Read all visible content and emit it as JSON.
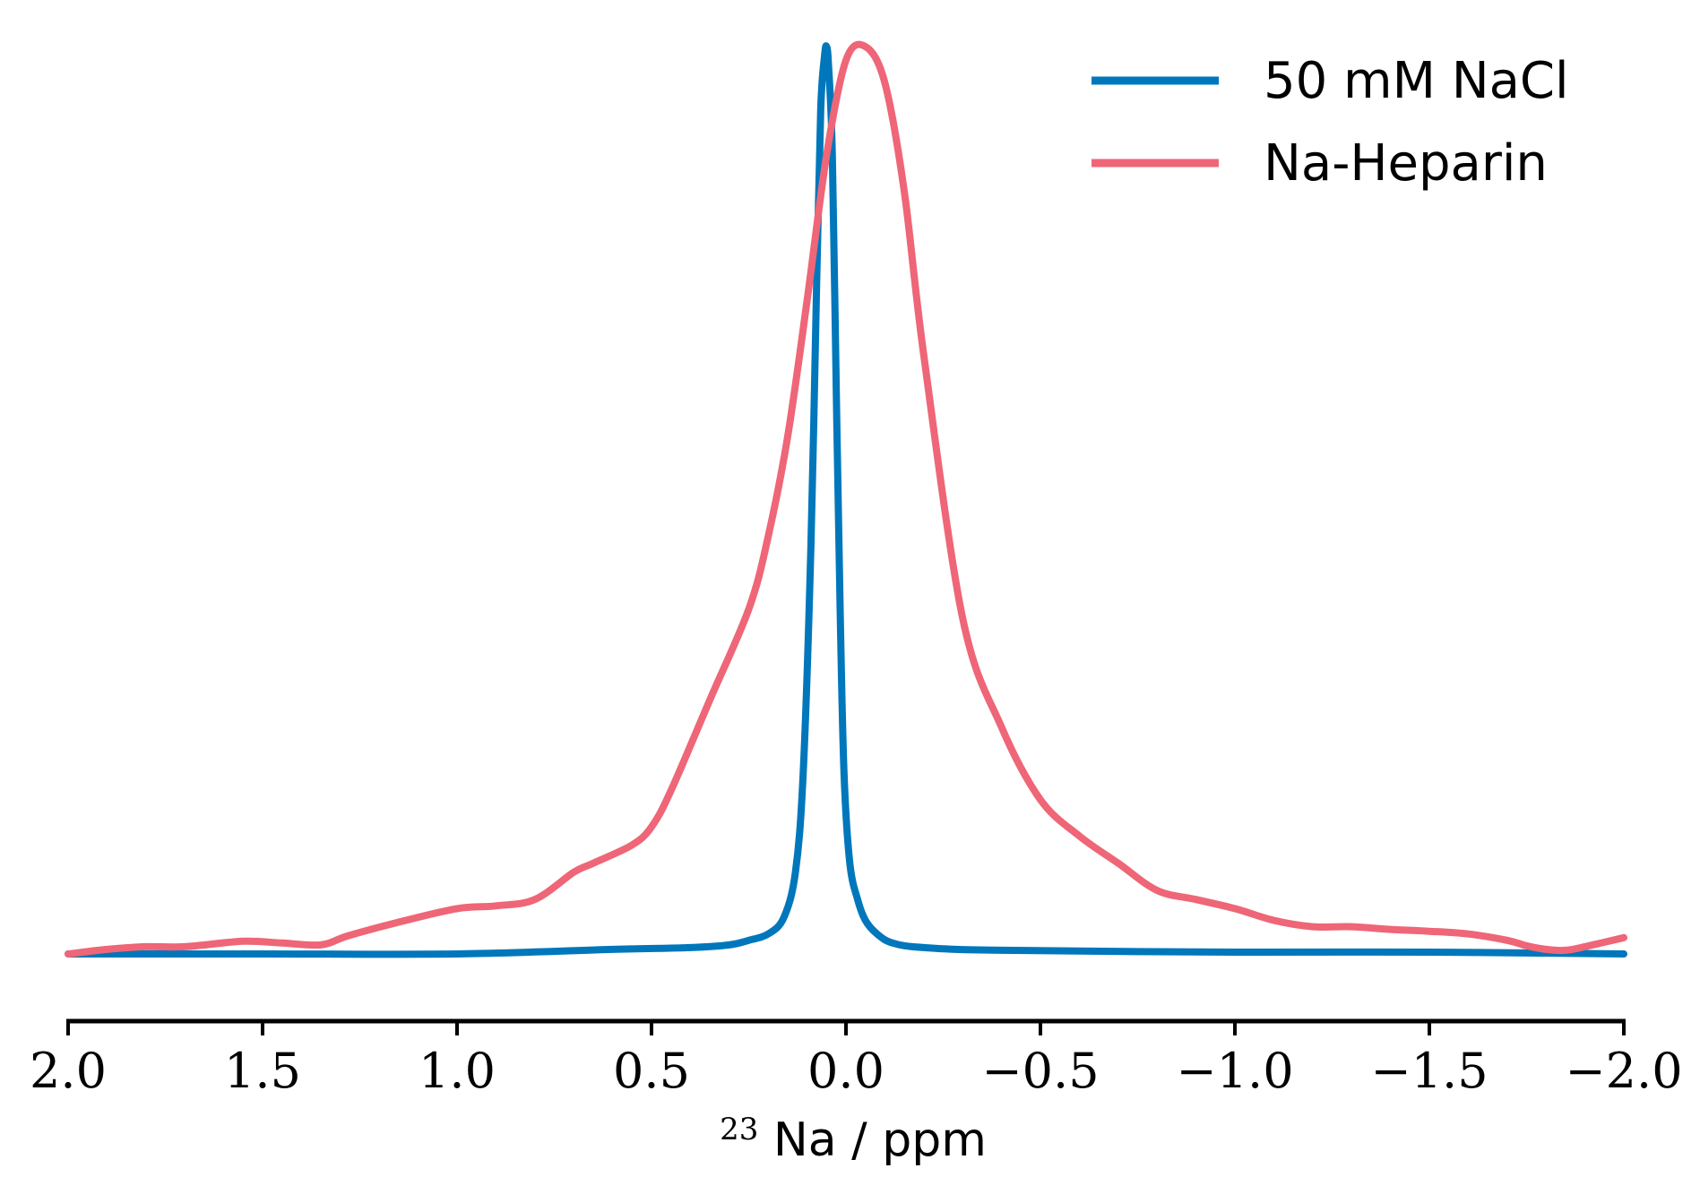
{
  "chart_data": {
    "type": "line",
    "title": "",
    "xlabel": {
      "superscript": "23",
      "text": "Na / ppm"
    },
    "ylabel": "",
    "xlim": [
      2.0,
      -2.0
    ],
    "ylim": [
      0,
      1.0
    ],
    "x_inverted": true,
    "yaxis_visible": false,
    "grid": false,
    "legend_position": "top-right",
    "xticks": [
      {
        "value": 2.0,
        "label": "2.0"
      },
      {
        "value": 1.5,
        "label": "1.5"
      },
      {
        "value": 1.0,
        "label": "1.0"
      },
      {
        "value": 0.5,
        "label": "0.5"
      },
      {
        "value": 0.0,
        "label": "0.0"
      },
      {
        "value": -0.5,
        "label": "−0.5"
      },
      {
        "value": -1.0,
        "label": "−1.0"
      },
      {
        "value": -1.5,
        "label": "−1.5"
      },
      {
        "value": -2.0,
        "label": "−2.0"
      }
    ],
    "series": [
      {
        "name": "50 mM NaCl",
        "color": "#0077bb",
        "x": [
          2.0,
          1.5,
          1.0,
          0.6,
          0.4,
          0.3,
          0.25,
          0.2,
          0.16,
          0.13,
          0.11,
          0.09,
          0.075,
          0.065,
          0.055,
          0.05,
          0.045,
          0.035,
          0.025,
          0.015,
          0.005,
          -0.01,
          -0.03,
          -0.05,
          -0.08,
          -0.12,
          -0.2,
          -0.4,
          -1.0,
          -1.5,
          -2.0
        ],
        "y": [
          0.0,
          0.0,
          0.0,
          0.005,
          0.007,
          0.01,
          0.015,
          0.022,
          0.04,
          0.09,
          0.2,
          0.45,
          0.75,
          0.93,
          0.99,
          1.0,
          0.98,
          0.88,
          0.62,
          0.38,
          0.2,
          0.1,
          0.06,
          0.037,
          0.022,
          0.012,
          0.007,
          0.004,
          0.002,
          0.002,
          0.0
        ]
      },
      {
        "name": "Na-Heparin",
        "color": "#ee6677",
        "x": [
          2.0,
          1.9,
          1.8,
          1.7,
          1.55,
          1.45,
          1.35,
          1.28,
          1.15,
          1.0,
          0.9,
          0.8,
          0.7,
          0.65,
          0.55,
          0.5,
          0.45,
          0.35,
          0.25,
          0.2,
          0.15,
          0.1,
          0.05,
          0.0,
          -0.05,
          -0.1,
          -0.15,
          -0.2,
          -0.3,
          -0.4,
          -0.5,
          -0.6,
          -0.7,
          -0.8,
          -0.9,
          -1.0,
          -1.1,
          -1.2,
          -1.3,
          -1.4,
          -1.5,
          -1.6,
          -1.7,
          -1.75,
          -1.8,
          -1.85,
          -1.9,
          -2.0
        ],
        "y": [
          0.0,
          0.005,
          0.008,
          0.008,
          0.014,
          0.012,
          0.01,
          0.02,
          0.035,
          0.05,
          0.053,
          0.06,
          0.09,
          0.1,
          0.12,
          0.14,
          0.18,
          0.28,
          0.38,
          0.46,
          0.57,
          0.72,
          0.88,
          0.985,
          1.0,
          0.96,
          0.84,
          0.66,
          0.37,
          0.25,
          0.17,
          0.13,
          0.1,
          0.07,
          0.06,
          0.05,
          0.037,
          0.03,
          0.03,
          0.027,
          0.025,
          0.022,
          0.015,
          0.009,
          0.005,
          0.004,
          0.008,
          0.018
        ]
      }
    ]
  }
}
